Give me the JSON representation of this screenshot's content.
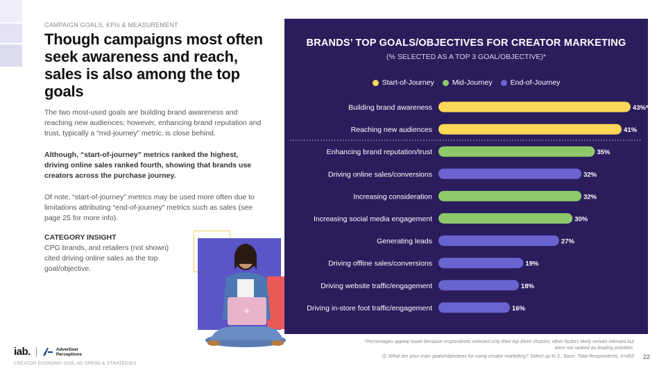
{
  "header": {
    "eyebrow": "CAMPAIGN GOALS, KPIs & MEASUREMENT",
    "headline": "Though campaigns most often seek awareness and reach, sales is also among the top goals"
  },
  "body": {
    "paragraph_1": "The two most-used goals are building brand awareness and reaching new audiences; however, enhancing brand reputation and trust, typically a “mid-journey” metric, is close behind.",
    "paragraph_2": "Although, “start-of-journey” metrics ranked the highest, driving online sales ranked fourth, showing that brands use creators across the purchase journey.",
    "paragraph_3": "Of note, “start-of-journey” metrics may be used more often due to limitations attributing “end-of-journey” metrics such as sales (see page 25 for more info).",
    "insight_title": "CATEGORY INSIGHT",
    "insight_body": "CPG brands, and retailers (not shown) cited driving online sales as the top goal/objective."
  },
  "logos": {
    "iab": "iab.",
    "partner_line1": "Advertiser",
    "partner_line2": "Perceptions"
  },
  "footer": {
    "left": "CREATOR ECONOMY 2025: AD SPEND & STRATEGIES",
    "note_1": "*Percentages appear lower because respondents selected only their top three choices, other factors likely remain relevant but were not ranked as leading priorities.",
    "note_2": "Q: What are your main goals/objectives for using creator marketing? Select up to 3.; Base: Total Respondents, n=453",
    "page_number": "22"
  },
  "colors": {
    "panel": "#2b1d5c",
    "start": "#fcd856",
    "mid": "#8dc86a",
    "end": "#6a64d0"
  },
  "chart_data": {
    "type": "bar",
    "orientation": "horizontal",
    "title": "BRANDS’ TOP GOALS/OBJECTIVES FOR CREATOR MARKETING",
    "subtitle": "(% SELECTED AS A TOP 3 GOAL/OBJECTIVE)*",
    "legend": [
      {
        "key": "start",
        "label": "Start-of-Journey",
        "color": "#fcd856"
      },
      {
        "key": "mid",
        "label": "Mid-Journey",
        "color": "#8dc86a"
      },
      {
        "key": "end",
        "label": "End-of-Journey",
        "color": "#6a64d0"
      }
    ],
    "legend_position": "top",
    "xlim": [
      0,
      50
    ],
    "categories": [
      "Building brand awareness",
      "Reaching new audiences",
      "Enhancing brand reputation/trust",
      "Driving online sales/conversions",
      "Increasing consideration",
      "Increasing social media engagement",
      "Generating leads",
      "Driving offline sales/conversions",
      "Driving website traffic/engagement",
      "Driving in-store foot traffic/engagement"
    ],
    "values": [
      43,
      41,
      35,
      32,
      32,
      30,
      27,
      19,
      18,
      16
    ],
    "value_labels": [
      "43%*",
      "41%",
      "35%",
      "32%",
      "32%",
      "30%",
      "27%",
      "19%",
      "18%",
      "16%"
    ],
    "groups": [
      "start",
      "start",
      "mid",
      "end",
      "mid",
      "mid",
      "end",
      "end",
      "end",
      "end"
    ]
  }
}
